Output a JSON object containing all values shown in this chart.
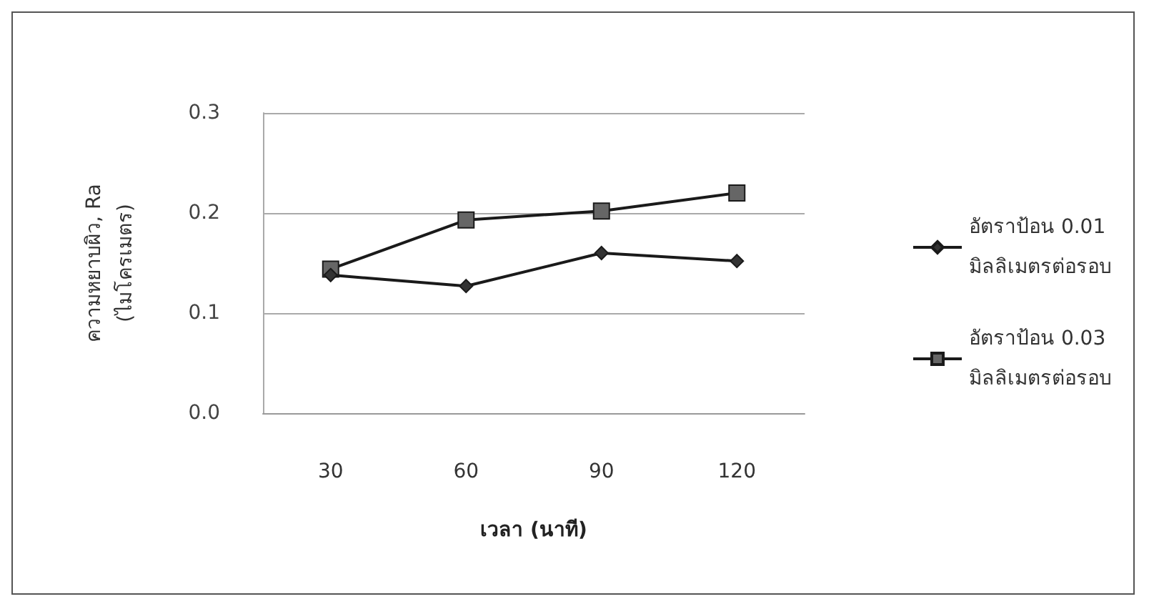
{
  "chart_data": {
    "type": "line",
    "xlabel": "เวลา (นาที)",
    "ylabel": "ความหยาบผิว, Ra\n(ไมโครเมตร)",
    "categories": [
      "30",
      "60",
      "90",
      "120"
    ],
    "series": [
      {
        "name": "อัตราป้อน 0.01 มิลลิเมตรต่อรอบ",
        "color": "#1a1a1a",
        "marker": "diamond",
        "values": [
          0.138,
          0.127,
          0.16,
          0.152
        ]
      },
      {
        "name": "อัตราป้อน 0.03 มิลลิเมตรต่อรอบ",
        "color": "#1a1a1a",
        "marker": "square",
        "values": [
          0.144,
          0.193,
          0.202,
          0.22
        ]
      }
    ],
    "ylim": [
      0,
      0.3
    ],
    "yticks": [
      {
        "value": 0,
        "label": "0.0"
      },
      {
        "value": 0.1,
        "label": "0.1"
      },
      {
        "value": 0.2,
        "label": "0.2"
      },
      {
        "value": 0.3,
        "label": "0.3"
      }
    ],
    "grid": "y",
    "legend": "right",
    "line_style": "solid"
  }
}
